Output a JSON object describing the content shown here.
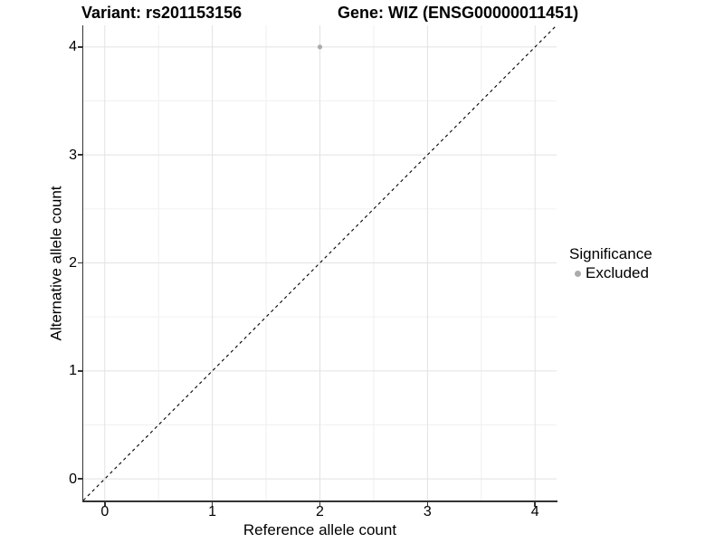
{
  "chart_data": {
    "type": "scatter",
    "title_left": "Variant: rs201153156",
    "title_right": "Gene: WIZ (ENSG00000011451)",
    "xlabel": "Reference allele count",
    "ylabel": "Alternative allele count",
    "xlim": [
      -0.2,
      4.2
    ],
    "ylim": [
      -0.2,
      4.2
    ],
    "x_ticks": [
      0,
      1,
      2,
      3,
      4
    ],
    "y_ticks": [
      0,
      1,
      2,
      3,
      4
    ],
    "x_minor_ticks": [
      0.5,
      1.5,
      2.5,
      3.5
    ],
    "y_minor_ticks": [
      0.5,
      1.5,
      2.5,
      3.5
    ],
    "grid": true,
    "legend": {
      "title": "Significance",
      "position": "right",
      "items": [
        {
          "label": "Excluded",
          "color": "#ababab",
          "marker": "circle"
        }
      ]
    },
    "series": [
      {
        "name": "Excluded",
        "color": "#ababab",
        "points": [
          {
            "x": 2,
            "y": 4
          }
        ]
      }
    ],
    "reference_line": {
      "style": "dashed",
      "color": "#000000",
      "slope": 1,
      "intercept": 0,
      "from": [
        -0.2,
        -0.2
      ],
      "to": [
        4.2,
        4.2
      ]
    },
    "colors": {
      "background": "#ffffff",
      "grid_major": "#e2e2e2",
      "grid_minor": "#f0f0f0",
      "axis_line": "#333333",
      "tick_mark": "#333333",
      "text": "#000000",
      "point": "#ababab"
    }
  }
}
